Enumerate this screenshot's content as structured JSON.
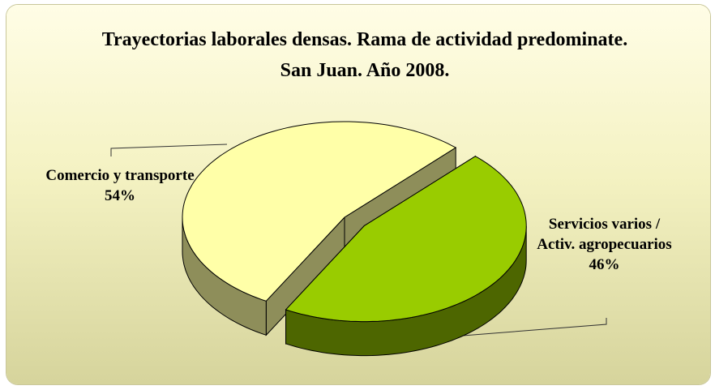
{
  "chart_data": {
    "type": "pie3d",
    "title": "Trayectorias laborales densas. Rama de actividad predominate. San Juan. Año 2008.",
    "categories": [
      "Comercio y transporte",
      "Servicios varios / Activ. agropecuarios"
    ],
    "values": [
      54,
      46
    ],
    "value_labels": [
      "54%",
      "46%"
    ],
    "colors": [
      "#ffffa8",
      "#99cc00"
    ],
    "side_colors": [
      "#8e8e5a",
      "#4d6600"
    ]
  }
}
